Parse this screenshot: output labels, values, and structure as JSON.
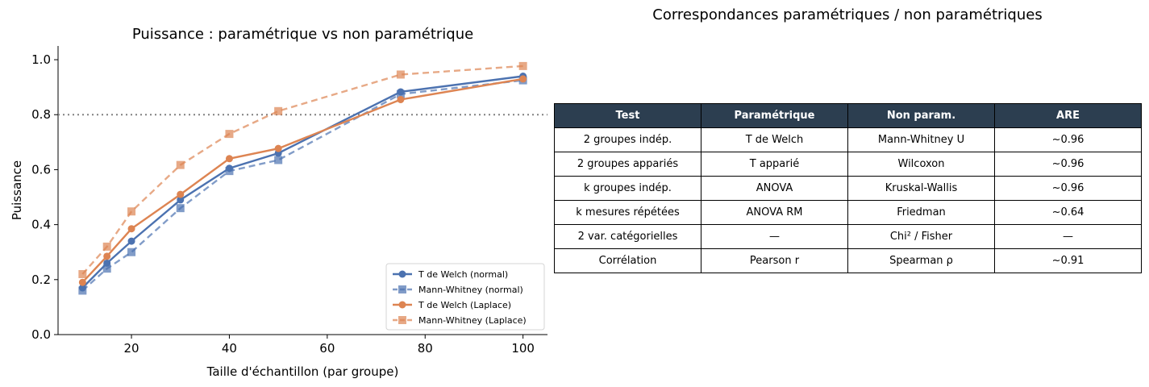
{
  "chart_data": {
    "type": "line",
    "title": "Puissance : paramétrique vs non paramétrique",
    "xlabel": "Taille d'échantillon (par groupe)",
    "ylabel": "Puissance",
    "xlim": [
      5,
      105
    ],
    "ylim": [
      0,
      1.05
    ],
    "xticks": [
      20,
      40,
      60,
      80,
      100
    ],
    "yticks": [
      0.0,
      0.2,
      0.4,
      0.6,
      0.8,
      1.0
    ],
    "x": [
      10,
      15,
      20,
      30,
      40,
      50,
      75,
      100
    ],
    "reference_line": {
      "y": 0.8,
      "style": "dotted",
      "color": "#808080"
    },
    "legend_position": "lower-right",
    "series": [
      {
        "name": "T de Welch (normal)",
        "color": "#4c72b0",
        "linestyle": "solid",
        "marker": "circle",
        "values": [
          0.17,
          0.26,
          0.34,
          0.49,
          0.605,
          0.66,
          0.883,
          0.94
        ]
      },
      {
        "name": "Mann-Whitney (normal)",
        "color": "#4c72b0",
        "linestyle": "dashed",
        "marker": "square",
        "values": [
          0.16,
          0.24,
          0.3,
          0.46,
          0.595,
          0.635,
          0.875,
          0.925
        ]
      },
      {
        "name": "T de Welch (Laplace)",
        "color": "#dd8452",
        "linestyle": "solid",
        "marker": "circle",
        "values": [
          0.19,
          0.285,
          0.385,
          0.51,
          0.64,
          0.677,
          0.855,
          0.93
        ]
      },
      {
        "name": "Mann-Whitney (Laplace)",
        "color": "#dd8452",
        "linestyle": "dashed",
        "marker": "square",
        "values": [
          0.22,
          0.32,
          0.448,
          0.617,
          0.73,
          0.813,
          0.946,
          0.977
        ]
      }
    ]
  },
  "table": {
    "title": "Correspondances paramétriques / non paramétriques",
    "headers": [
      "Test",
      "Paramétrique",
      "Non param.",
      "ARE"
    ],
    "rows": [
      [
        "2 groupes indép.",
        "T de Welch",
        "Mann-Whitney U",
        "~0.96"
      ],
      [
        "2 groupes appariés",
        "T apparié",
        "Wilcoxon",
        "~0.96"
      ],
      [
        "k groupes indép.",
        "ANOVA",
        "Kruskal-Wallis",
        "~0.96"
      ],
      [
        "k mesures répétées",
        "ANOVA RM",
        "Friedman",
        "~0.64"
      ],
      [
        "2 var. catégorielles",
        "—",
        "Chi² / Fisher",
        "—"
      ],
      [
        "Corrélation",
        "Pearson r",
        "Spearman ρ",
        "~0.91"
      ]
    ],
    "header_bg": "#2c3e50"
  }
}
